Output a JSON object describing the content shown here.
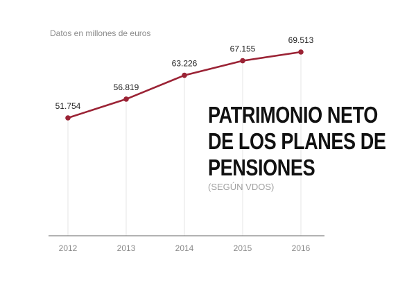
{
  "chart_data": {
    "type": "line",
    "subtitle": "Datos en millones de euros",
    "title_lines": [
      "PATRIMONIO NETO",
      "DE LOS PLANES DE",
      "PENSIONES"
    ],
    "note": "(SEGÚN VDOS)",
    "categories": [
      "2012",
      "2013",
      "2014",
      "2015",
      "2016"
    ],
    "series": [
      {
        "values": [
          51754,
          56819,
          63226,
          67155,
          69513
        ],
        "labels": [
          "51.754",
          "56.819",
          "63.226",
          "67.155",
          "69.513"
        ],
        "color": "#9b2335"
      }
    ],
    "xlabel": "",
    "ylabel": "",
    "ylim": [
      20000,
      71000
    ],
    "grid": "vertical",
    "gridline_color": "#e4e4e4",
    "axis_color": "#666666"
  }
}
